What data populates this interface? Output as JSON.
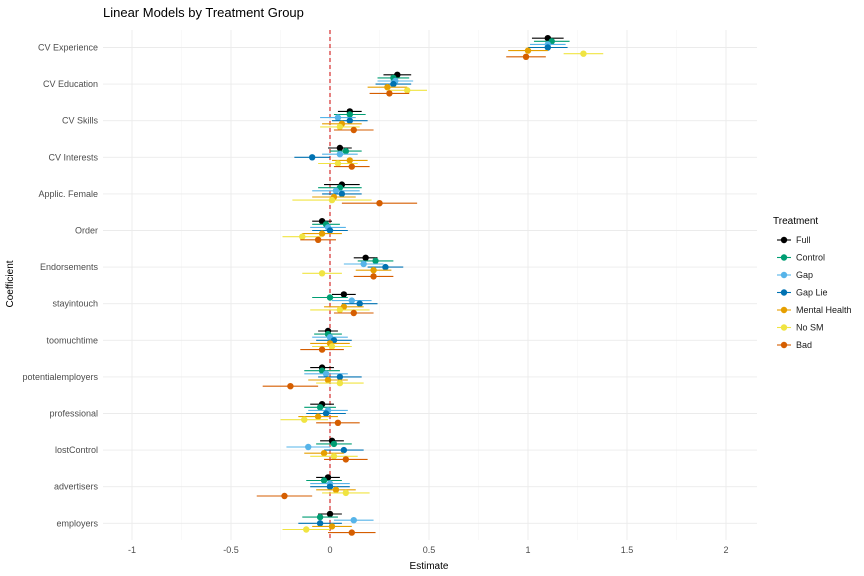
{
  "chart_data": {
    "type": "scatter",
    "subtype": "coefficient-plot-with-error-bars",
    "title": "Linear Models by Treatment Group",
    "xlabel": "Estimate",
    "ylabel": "Coefficient",
    "xlim": [
      -1.1,
      2.15
    ],
    "x_ticks": [
      -1,
      -0.5,
      0,
      0.5,
      1,
      1.5,
      2
    ],
    "x_tick_labels": [
      "-1",
      "-0.5",
      "0",
      "0.5",
      "1",
      "1.5",
      "2"
    ],
    "reference_line": {
      "x": 0,
      "style": "dashed",
      "color": "#cc0000"
    },
    "grid": true,
    "legend": {
      "title": "Treatment",
      "position": "right"
    },
    "categories": [
      "CV Experience",
      "CV Education",
      "CV Skills",
      "CV Interests",
      "Applic. Female",
      "Order",
      "Endorsements",
      "stayintouch",
      "toomuchtime",
      "potentialemployers",
      "professional",
      "lostControl",
      "advertisers",
      "employers"
    ],
    "series": [
      {
        "name": "Full",
        "color": "#000000",
        "estimates": [
          1.1,
          0.34,
          0.1,
          0.05,
          0.06,
          -0.04,
          0.18,
          0.07,
          -0.01,
          -0.04,
          -0.04,
          0.01,
          -0.01,
          0.0
        ],
        "lower": [
          1.02,
          0.27,
          0.04,
          -0.01,
          -0.03,
          -0.09,
          0.12,
          0.01,
          -0.06,
          -0.1,
          -0.1,
          -0.05,
          -0.07,
          -0.06
        ],
        "upper": [
          1.18,
          0.41,
          0.16,
          0.11,
          0.15,
          0.01,
          0.24,
          0.13,
          0.04,
          0.02,
          0.02,
          0.07,
          0.05,
          0.06
        ]
      },
      {
        "name": "Control",
        "color": "#009E73",
        "estimates": [
          1.12,
          0.32,
          0.1,
          0.08,
          0.05,
          -0.02,
          0.23,
          0.0,
          -0.01,
          -0.04,
          -0.05,
          0.02,
          -0.03,
          -0.05
        ],
        "lower": [
          1.03,
          0.24,
          0.02,
          0.0,
          -0.06,
          -0.09,
          0.14,
          -0.09,
          -0.08,
          -0.13,
          -0.13,
          -0.07,
          -0.12,
          -0.14
        ],
        "upper": [
          1.21,
          0.4,
          0.18,
          0.16,
          0.16,
          0.05,
          0.32,
          0.09,
          0.06,
          0.05,
          0.03,
          0.11,
          0.06,
          0.04
        ]
      },
      {
        "name": "Gap",
        "color": "#56B4E9",
        "estimates": [
          1.1,
          0.33,
          0.04,
          0.05,
          0.03,
          -0.01,
          0.17,
          0.11,
          0.0,
          -0.02,
          -0.01,
          -0.11,
          0.0,
          0.12
        ],
        "lower": [
          1.01,
          0.24,
          -0.05,
          -0.04,
          -0.09,
          -0.1,
          0.07,
          0.01,
          -0.09,
          -0.13,
          -0.11,
          -0.22,
          -0.1,
          0.02
        ],
        "upper": [
          1.19,
          0.42,
          0.13,
          0.14,
          0.15,
          0.08,
          0.27,
          0.21,
          0.09,
          0.09,
          0.09,
          0.0,
          0.1,
          0.22
        ]
      },
      {
        "name": "Gap Lie",
        "color": "#0072B2",
        "estimates": [
          1.1,
          0.32,
          0.1,
          -0.09,
          0.06,
          0.0,
          0.28,
          0.15,
          0.02,
          0.05,
          -0.02,
          0.07,
          0.0,
          -0.05
        ],
        "lower": [
          1.0,
          0.23,
          0.01,
          -0.18,
          -0.04,
          -0.09,
          0.19,
          0.06,
          -0.07,
          -0.06,
          -0.12,
          -0.03,
          -0.1,
          -0.16
        ],
        "upper": [
          1.2,
          0.41,
          0.19,
          0.0,
          0.16,
          0.09,
          0.37,
          0.24,
          0.11,
          0.16,
          0.08,
          0.17,
          0.1,
          0.06
        ]
      },
      {
        "name": "Mental Health",
        "color": "#E69F00",
        "estimates": [
          1.0,
          0.29,
          0.06,
          0.1,
          0.02,
          -0.04,
          0.22,
          0.07,
          0.0,
          -0.01,
          -0.06,
          -0.03,
          0.03,
          0.01
        ],
        "lower": [
          0.9,
          0.19,
          -0.04,
          0.01,
          -0.09,
          -0.14,
          0.13,
          -0.03,
          -0.1,
          -0.11,
          -0.16,
          -0.13,
          -0.07,
          -0.09
        ],
        "upper": [
          1.1,
          0.39,
          0.16,
          0.19,
          0.13,
          0.06,
          0.31,
          0.17,
          0.1,
          0.09,
          0.04,
          0.07,
          0.13,
          0.11
        ]
      },
      {
        "name": "No SM",
        "color": "#F0E442",
        "estimates": [
          1.28,
          0.39,
          0.05,
          0.04,
          0.01,
          -0.14,
          -0.04,
          0.05,
          0.01,
          0.05,
          -0.13,
          0.02,
          0.08,
          -0.12
        ],
        "lower": [
          1.18,
          0.29,
          -0.05,
          -0.06,
          -0.19,
          -0.24,
          -0.14,
          -0.1,
          -0.09,
          -0.07,
          -0.25,
          -0.1,
          -0.04,
          -0.24
        ],
        "upper": [
          1.38,
          0.49,
          0.15,
          0.14,
          0.21,
          -0.04,
          0.06,
          0.2,
          0.11,
          0.17,
          -0.01,
          0.14,
          0.2,
          0.0
        ]
      },
      {
        "name": "Bad",
        "color": "#D55E00",
        "estimates": [
          0.99,
          0.3,
          0.12,
          0.11,
          0.25,
          -0.06,
          0.22,
          0.12,
          -0.04,
          -0.2,
          0.04,
          0.08,
          -0.23,
          0.11
        ],
        "lower": [
          0.89,
          0.2,
          0.02,
          0.02,
          0.06,
          -0.15,
          0.12,
          0.02,
          -0.15,
          -0.34,
          -0.07,
          -0.03,
          -0.37,
          -0.01
        ],
        "upper": [
          1.09,
          0.4,
          0.22,
          0.2,
          0.44,
          0.03,
          0.32,
          0.22,
          0.07,
          -0.06,
          0.15,
          0.19,
          -0.09,
          0.23
        ]
      }
    ]
  }
}
